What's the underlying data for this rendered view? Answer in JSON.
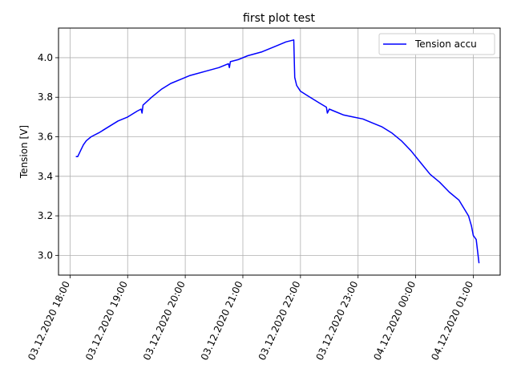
{
  "chart_data": {
    "type": "line",
    "title": "first plot test",
    "xlabel": "",
    "ylabel": "Tension [V]",
    "grid": true,
    "legend_position": "top-right",
    "x_ticks": [
      "03.12.2020 18:00",
      "03.12.2020 19:00",
      "03.12.2020 20:00",
      "03.12.2020 21:00",
      "03.12.2020 22:00",
      "03.12.2020 23:00",
      "04.12.2020 00:00",
      "04.12.2020 01:00"
    ],
    "y_ticks": [
      3.0,
      3.2,
      3.4,
      3.6,
      3.8,
      4.0
    ],
    "xlim": [
      "2020-12-03 17:48",
      "2020-12-04 01:28"
    ],
    "ylim": [
      2.9,
      4.15
    ],
    "series": [
      {
        "name": "Tension accu",
        "color": "#0000ff",
        "points": [
          [
            "2020-12-03 18:06",
            3.5
          ],
          [
            "2020-12-03 18:08",
            3.5
          ],
          [
            "2020-12-03 18:11",
            3.53
          ],
          [
            "2020-12-03 18:14",
            3.56
          ],
          [
            "2020-12-03 18:17",
            3.58
          ],
          [
            "2020-12-03 18:22",
            3.6
          ],
          [
            "2020-12-03 18:30",
            3.62
          ],
          [
            "2020-12-03 18:40",
            3.65
          ],
          [
            "2020-12-03 18:50",
            3.68
          ],
          [
            "2020-12-03 19:00",
            3.7
          ],
          [
            "2020-12-03 19:10",
            3.73
          ],
          [
            "2020-12-03 19:14",
            3.74
          ],
          [
            "2020-12-03 19:15",
            3.72
          ],
          [
            "2020-12-03 19:16",
            3.76
          ],
          [
            "2020-12-03 19:25",
            3.8
          ],
          [
            "2020-12-03 19:35",
            3.84
          ],
          [
            "2020-12-03 19:45",
            3.87
          ],
          [
            "2020-12-03 19:55",
            3.89
          ],
          [
            "2020-12-03 20:05",
            3.91
          ],
          [
            "2020-12-03 20:20",
            3.93
          ],
          [
            "2020-12-03 20:35",
            3.95
          ],
          [
            "2020-12-03 20:45",
            3.97
          ],
          [
            "2020-12-03 20:46",
            3.95
          ],
          [
            "2020-12-03 20:47",
            3.98
          ],
          [
            "2020-12-03 20:55",
            3.99
          ],
          [
            "2020-12-03 21:05",
            4.01
          ],
          [
            "2020-12-03 21:20",
            4.03
          ],
          [
            "2020-12-03 21:35",
            4.06
          ],
          [
            "2020-12-03 21:45",
            4.08
          ],
          [
            "2020-12-03 21:53",
            4.09
          ],
          [
            "2020-12-03 21:54",
            3.9
          ],
          [
            "2020-12-03 21:56",
            3.86
          ],
          [
            "2020-12-03 22:00",
            3.83
          ],
          [
            "2020-12-03 22:10",
            3.8
          ],
          [
            "2020-12-03 22:20",
            3.77
          ],
          [
            "2020-12-03 22:27",
            3.75
          ],
          [
            "2020-12-03 22:28",
            3.72
          ],
          [
            "2020-12-03 22:30",
            3.74
          ],
          [
            "2020-12-03 22:35",
            3.73
          ],
          [
            "2020-12-03 22:45",
            3.71
          ],
          [
            "2020-12-03 22:55",
            3.7
          ],
          [
            "2020-12-03 23:05",
            3.69
          ],
          [
            "2020-12-03 23:15",
            3.67
          ],
          [
            "2020-12-03 23:25",
            3.65
          ],
          [
            "2020-12-03 23:35",
            3.62
          ],
          [
            "2020-12-03 23:45",
            3.58
          ],
          [
            "2020-12-03 23:55",
            3.53
          ],
          [
            "2020-12-04 00:05",
            3.47
          ],
          [
            "2020-12-04 00:15",
            3.41
          ],
          [
            "2020-12-04 00:25",
            3.37
          ],
          [
            "2020-12-04 00:35",
            3.32
          ],
          [
            "2020-12-04 00:45",
            3.28
          ],
          [
            "2020-12-04 00:55",
            3.2
          ],
          [
            "2020-12-04 00:58",
            3.15
          ],
          [
            "2020-12-04 01:00",
            3.1
          ],
          [
            "2020-12-04 01:03",
            3.08
          ],
          [
            "2020-12-04 01:06",
            2.96
          ]
        ]
      }
    ]
  }
}
